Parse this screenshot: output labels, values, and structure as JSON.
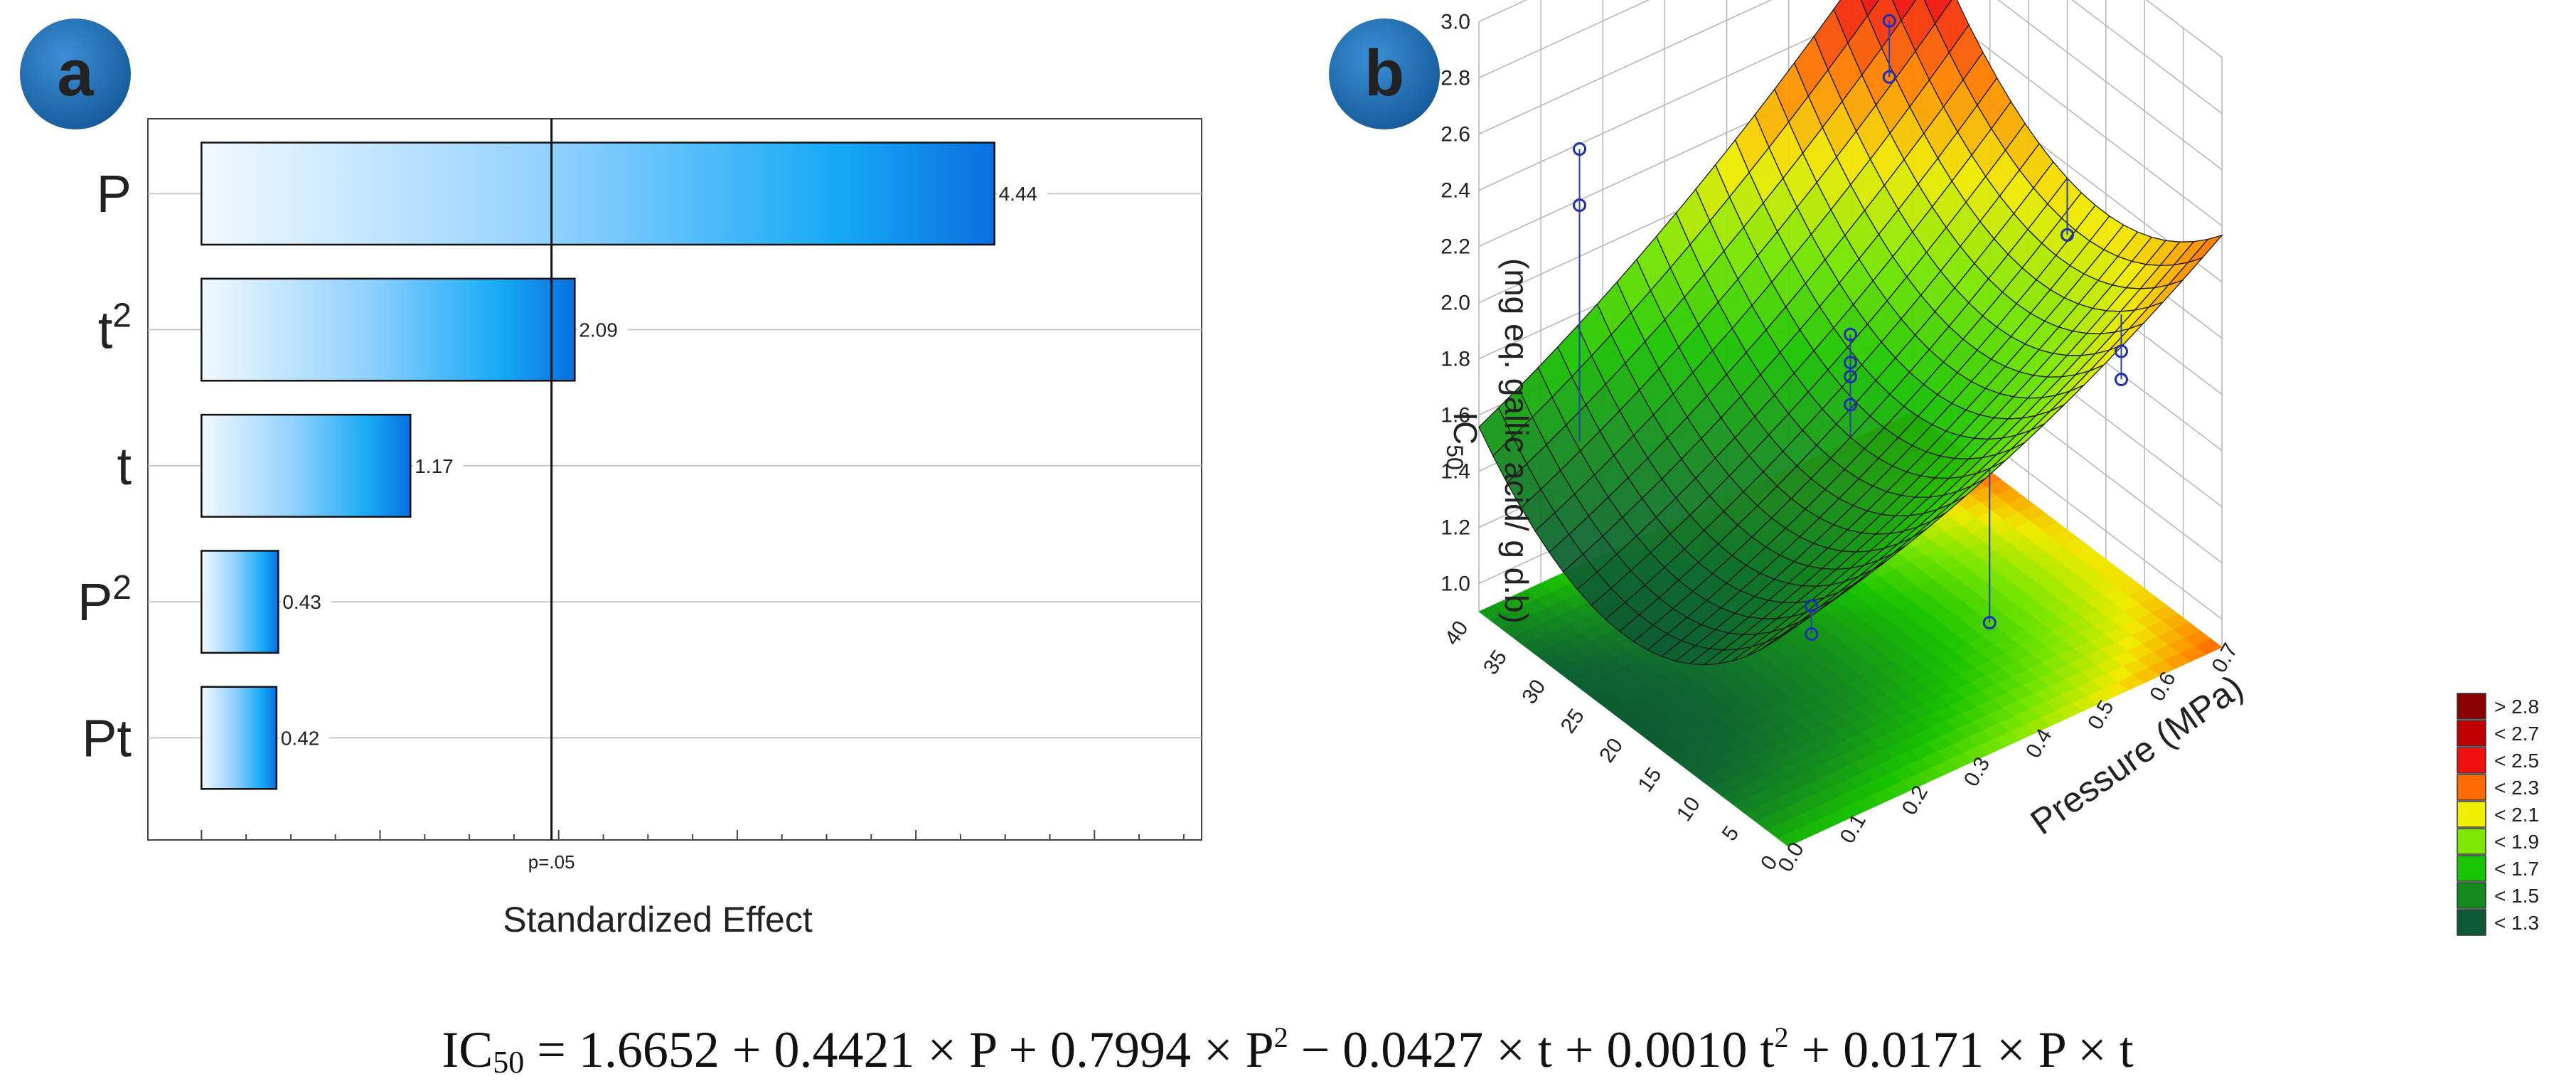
{
  "colors": {
    "badge": "#1f6fb2",
    "bar_dark": "#0a78e6",
    "bar_light": "#eef7ff",
    "grid": "#cccccc",
    "surface_low": "#0f6b3a",
    "surface_high": "#8b0000"
  },
  "panel_a": {
    "badge": "a",
    "chart_data": {
      "type": "bar",
      "orientation": "horizontal",
      "title": "",
      "xlabel": "Standardized Effect",
      "ylabel": "",
      "categories": [
        "P",
        "t",
        "t",
        "P",
        "Pt"
      ],
      "category_superscripts": [
        "",
        "2",
        "",
        "2",
        ""
      ],
      "values": [
        4.44,
        2.09,
        1.17,
        0.43,
        0.42
      ],
      "value_labels": [
        "4.44",
        "2.09",
        "1.17",
        "0.43",
        "0.42"
      ],
      "xlim": [
        -0.3,
        5.6
      ],
      "reference_line": {
        "value": 1.96,
        "label": "p=.05"
      },
      "grid": true
    }
  },
  "panel_b": {
    "badge": "b",
    "chart_data": {
      "type": "surface3d",
      "zlabel_main": "IC",
      "zlabel_sub": "50",
      "zlabel_unit": "(mg eq. gallic acid/ g d.b)",
      "xlabel": "Pressure (MPa)",
      "ylabel": "",
      "x_ticks": [
        "0.0",
        "0.1",
        "0.2",
        "0.3",
        "0.4",
        "0.5",
        "0.6",
        "0.7"
      ],
      "y_ticks": [
        "0",
        "5",
        "10",
        "15",
        "20",
        "25",
        "30",
        "35",
        "40"
      ],
      "z_ticks": [
        "1.0",
        "1.2",
        "1.4",
        "1.6",
        "1.8",
        "2.0",
        "2.2",
        "2.4",
        "2.6",
        "2.8",
        "3.0"
      ],
      "xlim": [
        0,
        0.7
      ],
      "ylim": [
        0,
        40
      ],
      "zlim": [
        1.0,
        3.0
      ]
    },
    "legend": [
      {
        "label": "> 2.8",
        "color": "#8b0000"
      },
      {
        "label": "< 2.7",
        "color": "#c00000"
      },
      {
        "label": "< 2.5",
        "color": "#f01010"
      },
      {
        "label": "< 2.3",
        "color": "#ff6a00"
      },
      {
        "label": "< 2.1",
        "color": "#f0ef00"
      },
      {
        "label": "< 1.9",
        "color": "#7fe800"
      },
      {
        "label": "< 1.7",
        "color": "#19c400"
      },
      {
        "label": "< 1.5",
        "color": "#148a1e"
      },
      {
        "label": "< 1.3",
        "color": "#0f5a36"
      }
    ]
  },
  "equation": {
    "pre": "IC",
    "sub": "50",
    "part1": " = 1.6652 + 0.4421 × P + 0.7994 × P",
    "sup1": "2",
    "part2": " − 0.0427 × t + 0.0010 t",
    "sup2": "2",
    "part3": " + 0.0171 × P × t"
  }
}
